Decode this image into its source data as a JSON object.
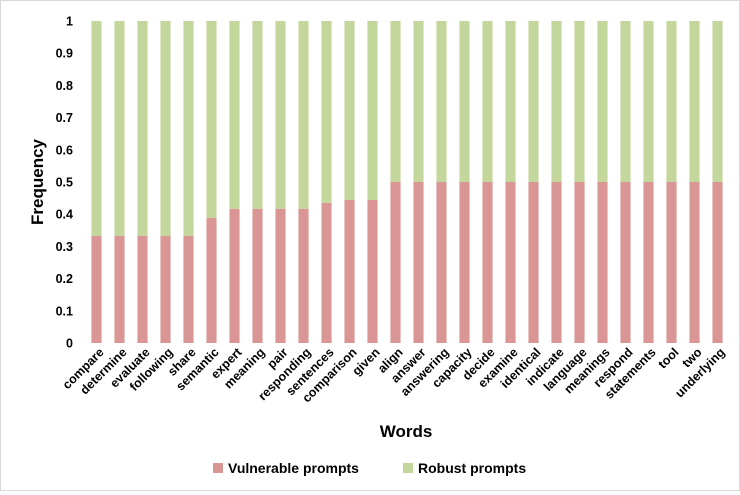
{
  "chart_data": {
    "type": "bar",
    "stacked": true,
    "xlabel": "Words",
    "ylabel": "Frequency",
    "ylim": [
      0,
      1
    ],
    "yticks": [
      "0",
      "0.1",
      "0.2",
      "0.3",
      "0.4",
      "0.5",
      "0.6",
      "0.7",
      "0.8",
      "0.9",
      "1"
    ],
    "grid": false,
    "legend_position": "bottom",
    "categories": [
      "compare",
      "determine",
      "evaluate",
      "following",
      "share",
      "semantic",
      "expert",
      "meaning",
      "pair",
      "responding",
      "sentences",
      "comparison",
      "given",
      "align",
      "answer",
      "answering",
      "capacity",
      "decide",
      "examine",
      "identical",
      "indicate",
      "language",
      "meanings",
      "respond",
      "statements",
      "tool",
      "two",
      "underlying"
    ],
    "series": [
      {
        "name": "Vulnerable prompts",
        "color": "#d99694",
        "values": [
          0.333,
          0.333,
          0.333,
          0.333,
          0.333,
          0.389,
          0.417,
          0.417,
          0.417,
          0.417,
          0.435,
          0.444,
          0.444,
          0.5,
          0.5,
          0.5,
          0.5,
          0.5,
          0.5,
          0.5,
          0.5,
          0.5,
          0.5,
          0.5,
          0.5,
          0.5,
          0.5,
          0.5
        ]
      },
      {
        "name": "Robust prompts",
        "color": "#c3d69b",
        "values": [
          0.667,
          0.667,
          0.667,
          0.667,
          0.667,
          0.611,
          0.583,
          0.583,
          0.583,
          0.583,
          0.565,
          0.556,
          0.556,
          0.5,
          0.5,
          0.5,
          0.5,
          0.5,
          0.5,
          0.5,
          0.5,
          0.5,
          0.5,
          0.5,
          0.5,
          0.5,
          0.5,
          0.5
        ]
      }
    ]
  }
}
